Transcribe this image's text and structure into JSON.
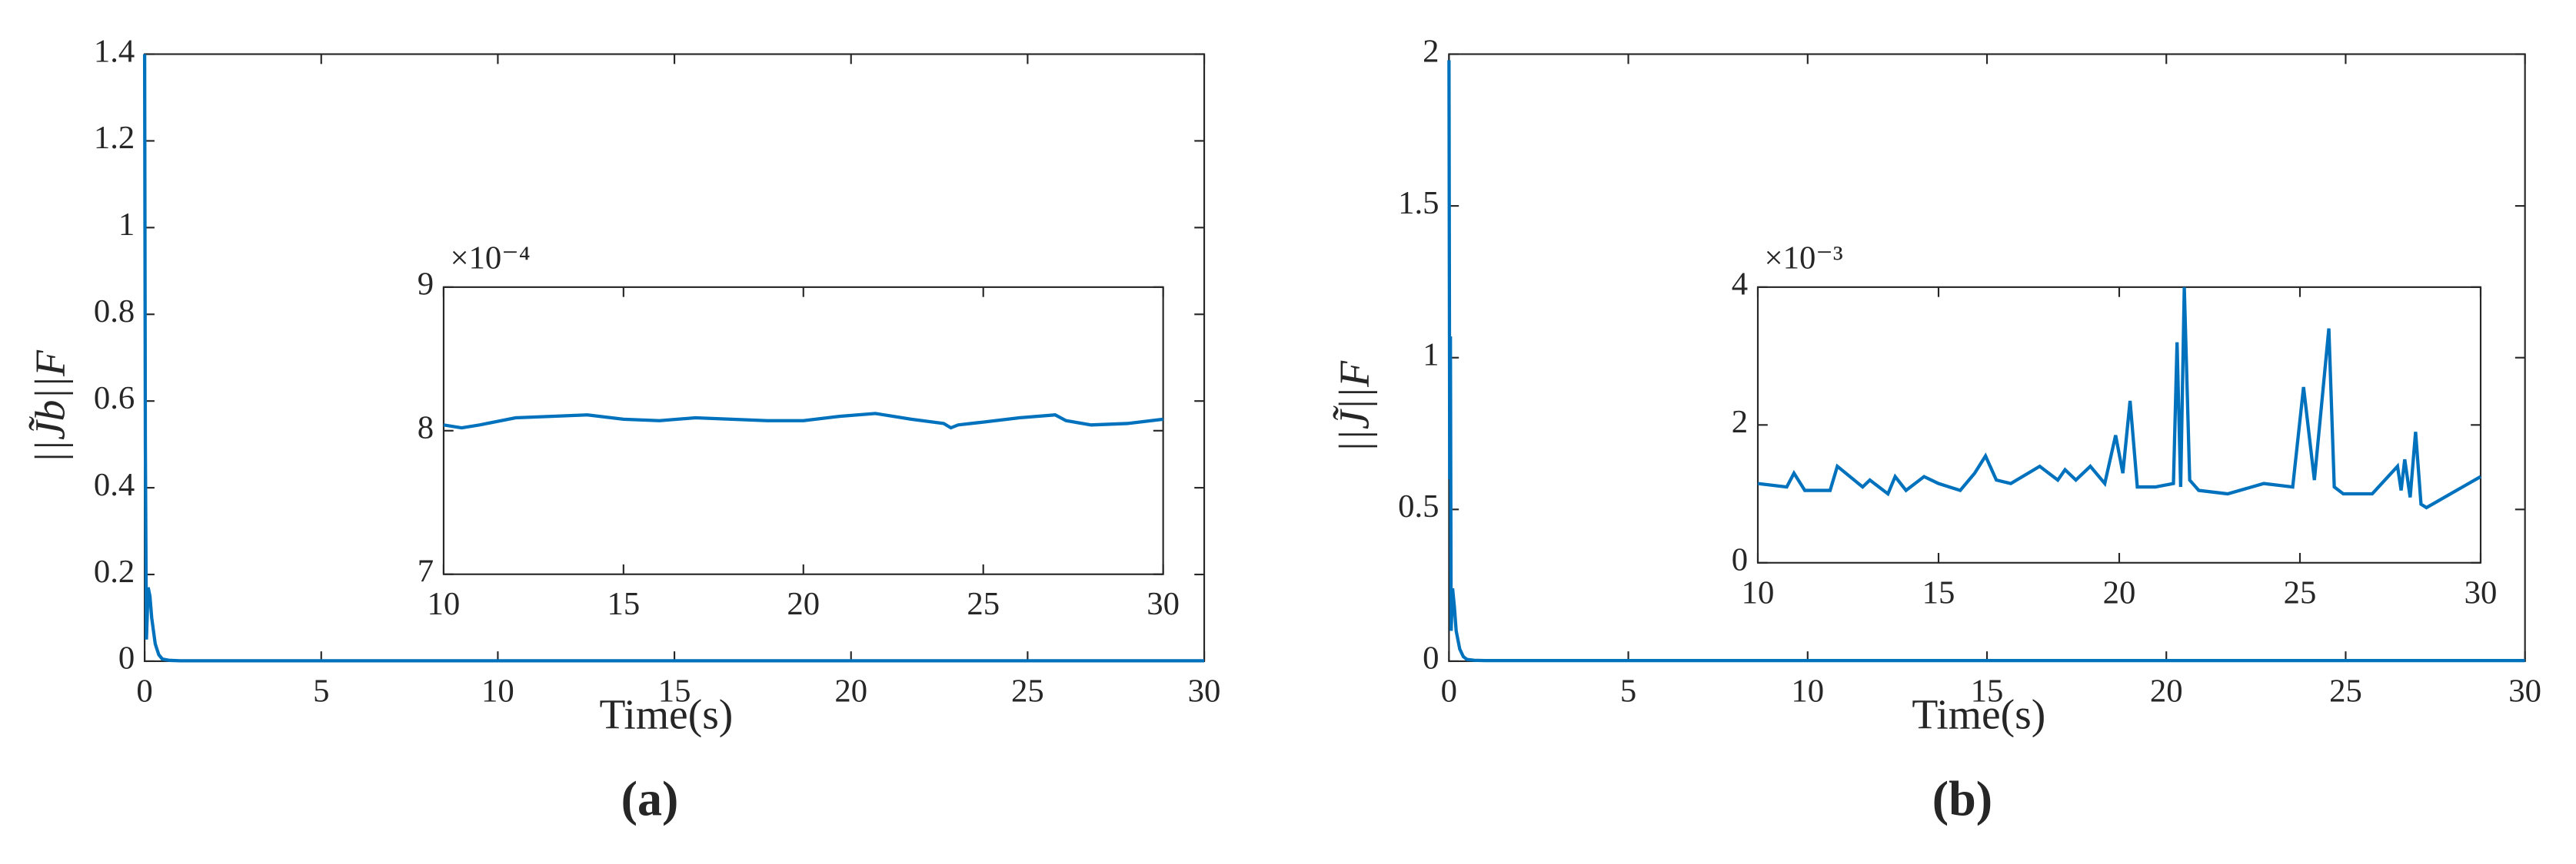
{
  "chart_data": [
    {
      "type": "line",
      "xlabel": "Time(s)",
      "ylabel": "||J̃b||F",
      "caption": "(a)",
      "x": [
        0,
        0.02,
        0.05,
        0.1,
        0.15,
        0.2,
        0.3,
        0.4,
        0.5,
        0.7,
        1,
        2,
        5,
        10,
        15,
        20,
        25,
        30
      ],
      "series": [
        {
          "color": "#0072bd",
          "values": [
            1.4,
            0.5,
            0.05,
            0.17,
            0.15,
            0.1,
            0.04,
            0.015,
            0.005,
            0.002,
            0.001,
            0.001,
            0.001,
            0.001,
            0.001,
            0.001,
            0.001,
            0.001
          ]
        }
      ],
      "xlim": [
        0,
        30
      ],
      "xticks": [
        0,
        5,
        10,
        15,
        20,
        25,
        30
      ],
      "ylim": [
        0,
        1.4
      ],
      "yticks": [
        0,
        0.2,
        0.4,
        0.6,
        0.8,
        1,
        1.2,
        1.4
      ]
    },
    {
      "type": "line",
      "xlabel": "Time(s)",
      "ylabel": "||J̃||F",
      "caption": "(b)",
      "x": [
        0,
        0.02,
        0.04,
        0.06,
        0.1,
        0.15,
        0.2,
        0.3,
        0.4,
        0.5,
        0.7,
        1,
        2,
        5,
        10,
        15,
        20,
        25,
        30
      ],
      "series": [
        {
          "color": "#0072bd",
          "values": [
            1.98,
            0.6,
            1.07,
            0.1,
            0.24,
            0.18,
            0.1,
            0.04,
            0.015,
            0.006,
            0.003,
            0.002,
            0.002,
            0.002,
            0.002,
            0.002,
            0.002,
            0.002,
            0.002
          ]
        }
      ],
      "xlim": [
        0,
        30
      ],
      "xticks": [
        0,
        5,
        10,
        15,
        20,
        25,
        30
      ],
      "ylim": [
        0,
        2
      ],
      "yticks": [
        0,
        0.5,
        1,
        1.5,
        2
      ]
    },
    {
      "type": "line",
      "y_multiplier": "×10⁻⁴",
      "x": [
        10,
        10.5,
        11,
        12,
        13,
        14,
        15,
        16,
        17,
        18,
        19,
        20,
        21,
        22,
        23,
        23.9,
        24.1,
        24.3,
        25,
        26,
        27,
        27.3,
        28,
        29,
        30
      ],
      "series": [
        {
          "color": "#0072bd",
          "values": [
            8.04,
            8.02,
            8.04,
            8.09,
            8.1,
            8.11,
            8.08,
            8.07,
            8.09,
            8.08,
            8.07,
            8.07,
            8.1,
            8.12,
            8.08,
            8.05,
            8.02,
            8.04,
            8.06,
            8.09,
            8.11,
            8.07,
            8.04,
            8.05,
            8.08
          ]
        }
      ],
      "xlim": [
        10,
        30
      ],
      "xticks": [
        10,
        15,
        20,
        25,
        30
      ],
      "ylim": [
        7,
        9
      ],
      "yticks": [
        7,
        8,
        9
      ]
    },
    {
      "type": "line",
      "y_multiplier": "×10⁻³",
      "x": [
        10,
        10.8,
        11,
        11.3,
        12,
        12.2,
        12.9,
        13.1,
        13.6,
        13.8,
        14.1,
        14.6,
        15,
        15.6,
        16,
        16.3,
        16.6,
        17,
        17.8,
        18.3,
        18.5,
        18.8,
        19.2,
        19.6,
        19.9,
        20.1,
        20.3,
        20.5,
        21,
        21.5,
        21.6,
        21.7,
        21.8,
        21.95,
        22.2,
        23,
        24,
        24.8,
        25.1,
        25.4,
        25.8,
        25.95,
        26.2,
        27,
        27.7,
        27.8,
        27.9,
        28.05,
        28.2,
        28.35,
        28.5,
        29,
        29.5,
        30
      ],
      "series": [
        {
          "color": "#0072bd",
          "values": [
            1.15,
            1.1,
            1.3,
            1.05,
            1.05,
            1.4,
            1.1,
            1.2,
            1.0,
            1.25,
            1.05,
            1.25,
            1.15,
            1.05,
            1.3,
            1.55,
            1.2,
            1.15,
            1.4,
            1.2,
            1.35,
            1.2,
            1.4,
            1.15,
            1.85,
            1.3,
            2.35,
            1.1,
            1.1,
            1.15,
            3.2,
            1.1,
            4.0,
            1.2,
            1.05,
            1.0,
            1.15,
            1.1,
            2.55,
            1.2,
            3.4,
            1.1,
            1.0,
            1.0,
            1.4,
            1.05,
            1.5,
            0.95,
            1.9,
            0.85,
            0.8,
            0.95,
            1.1,
            1.25
          ]
        }
      ],
      "xlim": [
        10,
        30
      ],
      "xticks": [
        10,
        15,
        20,
        25,
        30
      ],
      "ylim": [
        0,
        4
      ],
      "yticks": [
        0,
        2,
        4
      ]
    }
  ]
}
